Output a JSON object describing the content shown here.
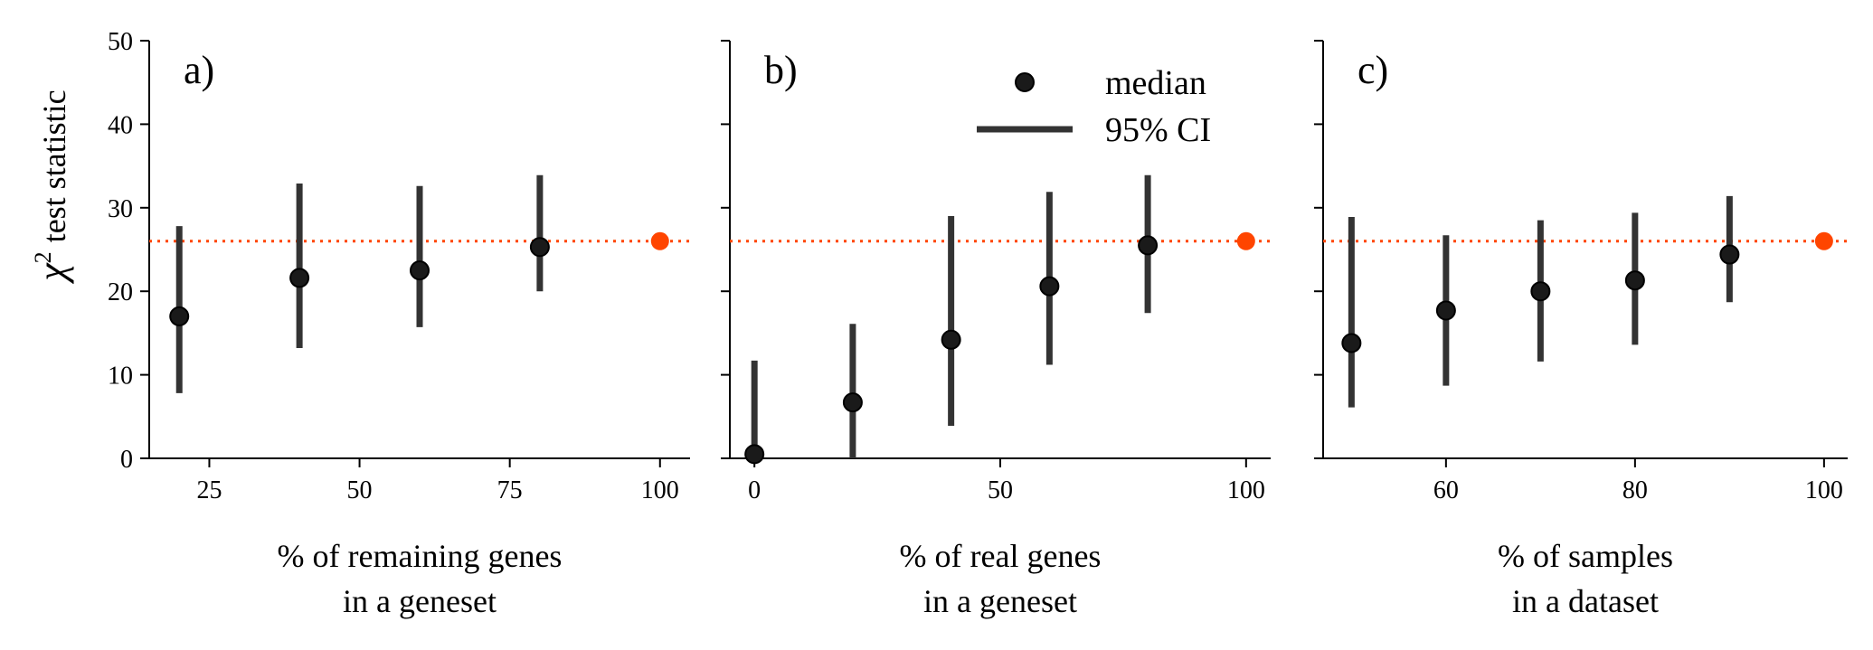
{
  "chart_data": [
    {
      "type": "scatter",
      "panel_label": "a)",
      "xlabel": [
        "% of remaining genes",
        "in a geneset"
      ],
      "ylabel": "test statistic",
      "ylabel_symbol": "χ",
      "ylabel_superscript": "2",
      "xlim": [
        15,
        105
      ],
      "ylim": [
        0,
        50
      ],
      "xticks": [
        25,
        50,
        75,
        100
      ],
      "yticks": [
        0,
        10,
        20,
        30,
        40,
        50
      ],
      "reference_line": 26,
      "reference_point": {
        "x": 100,
        "y": 26
      },
      "series": [
        {
          "name": "median",
          "x": [
            20,
            40,
            60,
            80
          ],
          "y": [
            17.0,
            21.6,
            22.5,
            25.3
          ],
          "ci_low": [
            7.8,
            13.2,
            15.7,
            20.0
          ],
          "ci_high": [
            27.8,
            32.9,
            32.6,
            33.9
          ]
        }
      ]
    },
    {
      "type": "scatter",
      "panel_label": "b)",
      "xlabel": [
        "% of real genes",
        "in a geneset"
      ],
      "xlim": [
        -5,
        105
      ],
      "ylim": [
        0,
        50
      ],
      "xticks": [
        0,
        50,
        100
      ],
      "yticks": [
        0,
        10,
        20,
        30,
        40,
        50
      ],
      "reference_line": 26,
      "reference_point": {
        "x": 100,
        "y": 26
      },
      "legend": {
        "position": "top-right",
        "entries": [
          "median",
          "95% CI"
        ]
      },
      "series": [
        {
          "name": "median",
          "x": [
            0,
            20,
            40,
            60,
            80
          ],
          "y": [
            0.5,
            6.7,
            14.2,
            20.6,
            25.5
          ],
          "ci_low": [
            0,
            0,
            3.9,
            11.2,
            17.4
          ],
          "ci_high": [
            11.7,
            16.1,
            29.0,
            31.9,
            33.9
          ]
        }
      ]
    },
    {
      "type": "scatter",
      "panel_label": "c)",
      "xlabel": [
        "% of samples",
        "in a dataset"
      ],
      "xlim": [
        47,
        102.5
      ],
      "ylim": [
        0,
        50
      ],
      "xticks": [
        60,
        80,
        100
      ],
      "yticks": [
        0,
        10,
        20,
        30,
        40,
        50
      ],
      "reference_line": 26,
      "reference_point": {
        "x": 100,
        "y": 26
      },
      "series": [
        {
          "name": "median",
          "x": [
            50,
            60,
            70,
            80,
            90
          ],
          "y": [
            13.8,
            17.7,
            20.0,
            21.3,
            24.4
          ],
          "ci_low": [
            6.1,
            8.7,
            11.6,
            13.6,
            18.7
          ],
          "ci_high": [
            28.9,
            26.7,
            28.5,
            29.4,
            31.4
          ]
        }
      ]
    }
  ],
  "colors": {
    "marker": "#1a1a1a",
    "errorbar": "#333333",
    "reference": "#ff4500"
  }
}
